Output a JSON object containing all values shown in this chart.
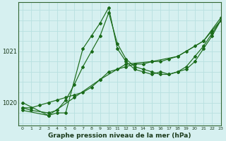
{
  "title": "Graphe pression niveau de la mer (hPa)",
  "background_color": "#d6f0f0",
  "grid_color": "#b8e0e0",
  "line_color": "#1a6b1a",
  "xlim": [
    -0.5,
    23
  ],
  "ylim": [
    1019.55,
    1021.95
  ],
  "yticks": [
    1020,
    1021
  ],
  "xticks": [
    0,
    1,
    2,
    3,
    4,
    5,
    6,
    7,
    8,
    9,
    10,
    11,
    12,
    13,
    14,
    15,
    16,
    17,
    18,
    19,
    20,
    21,
    22,
    23
  ],
  "series": [
    {
      "x": [
        0,
        1,
        2,
        3,
        4,
        5,
        6,
        7,
        8,
        9,
        10,
        11,
        12,
        13,
        14,
        15,
        16,
        17,
        18,
        19,
        20,
        21,
        22,
        23
      ],
      "y": [
        1019.9,
        1019.9,
        1019.95,
        1020.0,
        1020.05,
        1020.1,
        1020.15,
        1020.2,
        1020.3,
        1020.45,
        1020.6,
        1020.65,
        1020.7,
        1020.75,
        1020.75,
        1020.8,
        1020.8,
        1020.85,
        1020.9,
        1021.0,
        1021.1,
        1021.2,
        1021.4,
        1021.6
      ]
    },
    {
      "x": [
        0,
        1,
        3,
        4,
        5,
        6,
        7,
        8,
        9,
        10,
        11,
        12,
        13,
        14,
        15,
        16,
        17,
        18,
        19,
        20,
        21,
        22,
        23
      ],
      "y": [
        1019.9,
        1019.85,
        1019.8,
        1019.85,
        1020.05,
        1020.35,
        1020.7,
        1021.0,
        1021.3,
        1021.75,
        1021.15,
        1020.85,
        1020.7,
        1020.65,
        1020.6,
        1020.55,
        1020.55,
        1020.6,
        1020.7,
        1020.9,
        1021.1,
        1021.35,
        1021.6
      ]
    },
    {
      "x": [
        0,
        3,
        4,
        5,
        7,
        8,
        9,
        10,
        11,
        12,
        13,
        14,
        15,
        16,
        17,
        18,
        19,
        20,
        21,
        22,
        23
      ],
      "y": [
        1020.0,
        1019.75,
        1019.8,
        1019.8,
        1021.05,
        1021.3,
        1021.55,
        1021.85,
        1021.05,
        1020.8,
        1020.65,
        1020.6,
        1020.55,
        1020.6,
        1020.55,
        1020.6,
        1020.65,
        1020.8,
        1021.05,
        1021.3,
        1021.6
      ]
    },
    {
      "x": [
        0,
        3,
        6,
        9,
        12,
        15,
        18,
        21,
        23
      ],
      "y": [
        1019.85,
        1019.75,
        1020.1,
        1020.45,
        1020.75,
        1020.8,
        1020.9,
        1021.2,
        1021.65
      ]
    }
  ]
}
